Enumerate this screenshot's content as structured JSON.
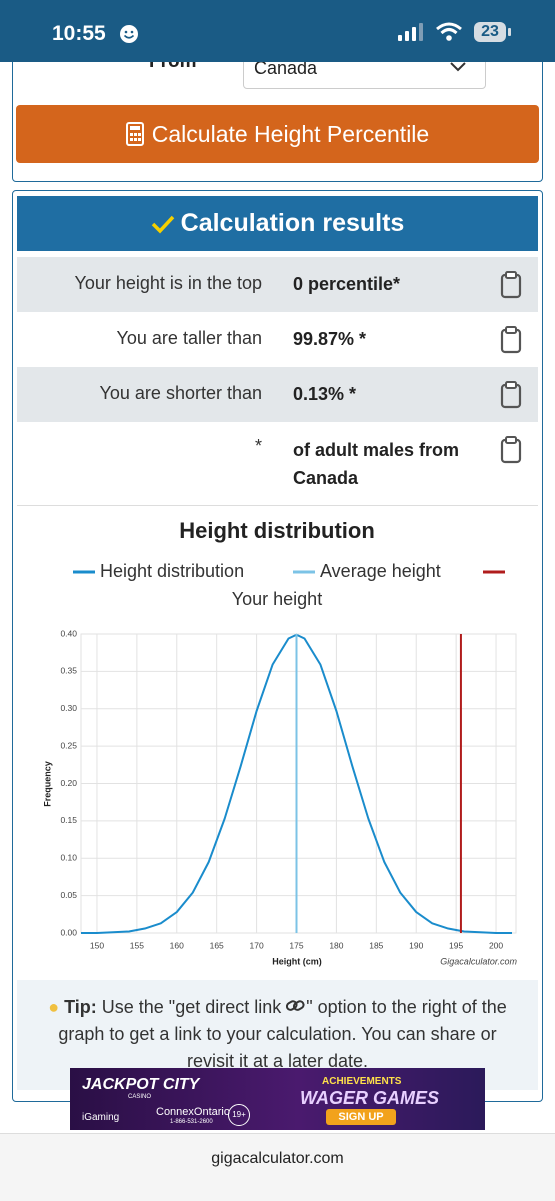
{
  "status_bar": {
    "time": "10:55",
    "battery": "23"
  },
  "form": {
    "from_label": "From",
    "country": "Canada",
    "button": "Calculate Height Percentile"
  },
  "results": {
    "title": "Calculation results",
    "rows": [
      [
        "Your height is in the top",
        "0 percentile*"
      ],
      [
        "You are taller than",
        "99.87% *"
      ],
      [
        "You are shorter than",
        "0.13% *"
      ],
      [
        "*",
        "of adult males from Canada"
      ]
    ]
  },
  "chart_data": {
    "type": "line",
    "title": "Height distribution",
    "x_label": "Height (cm)",
    "y_label": "Frequency",
    "credit": "Gigacalculator.com",
    "x": [
      148,
      150,
      152,
      154,
      156,
      158,
      160,
      162,
      164,
      166,
      168,
      170,
      172,
      174,
      175,
      176,
      178,
      180,
      182,
      184,
      186,
      188,
      190,
      192,
      194,
      196,
      198,
      200,
      202
    ],
    "series": [
      {
        "name": "Height distribution",
        "color": "#1a8ccc",
        "values": [
          0,
          0,
          0.001,
          0.002,
          0.006,
          0.013,
          0.028,
          0.054,
          0.095,
          0.153,
          0.223,
          0.297,
          0.359,
          0.394,
          0.399,
          0.394,
          0.359,
          0.297,
          0.223,
          0.153,
          0.095,
          0.054,
          0.028,
          0.013,
          0.006,
          0.002,
          0.001,
          0,
          0
        ]
      },
      {
        "name": "Average height",
        "color": "#7cc3e6",
        "x_value": 175
      },
      {
        "name": "Your height",
        "color": "#b01c1c",
        "x_value": 195.6
      }
    ],
    "xlim": [
      148,
      202.5
    ],
    "xticks": [
      150,
      155,
      160,
      165,
      170,
      175,
      180,
      185,
      190,
      195,
      200
    ],
    "ylim": [
      0,
      0.4
    ],
    "yticks": [
      {
        "value": 0,
        "label": "0.00"
      },
      {
        "value": 0.05,
        "label": "0.05"
      },
      {
        "value": 0.1,
        "label": "0.10"
      },
      {
        "value": 0.15,
        "label": "0.15"
      },
      {
        "value": 0.2,
        "label": "0.20"
      },
      {
        "value": 0.25,
        "label": "0.25"
      },
      {
        "value": 0.3,
        "label": "0.30"
      },
      {
        "value": 0.35,
        "label": "0.35"
      },
      {
        "value": 0.4,
        "label": "0.40"
      }
    ],
    "grid": true
  },
  "tip": {
    "label": "Tip:",
    "before_icon": "Use the \"get direct link",
    "after_icon": "\" option to the right of the graph to get a link to your calculation. You can share or revisit it at a later date."
  },
  "ad": {
    "brand": "JACKPOT CITY",
    "brand_sub": "CASINO",
    "igaming": "iGaming",
    "connex": "ConnexOntario",
    "phone": "1-866-531-2600",
    "age": "19+",
    "banner_top": "ACHIEVEMENTS",
    "banner_main": "WAGER GAMES",
    "cta": "SIGN UP"
  },
  "footer": {
    "url": "gigacalculator.com"
  }
}
